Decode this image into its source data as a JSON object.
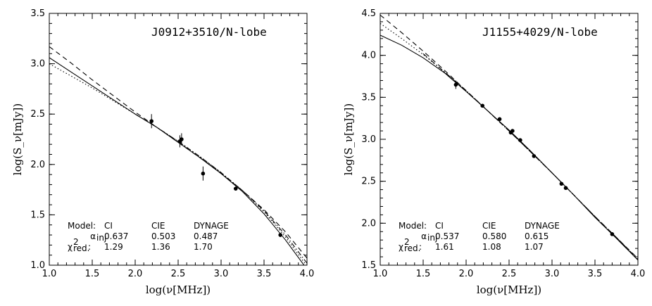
{
  "chart_data": [
    {
      "type": "line",
      "title": "J0912+3510/N-lobe",
      "xlabel": "log(ν[MHz])",
      "ylabel": "log(S_ν[mJy])",
      "xlim": [
        1.0,
        4.0
      ],
      "ylim": [
        1.0,
        3.5
      ],
      "xticks": [
        "1.0",
        "1.5",
        "2.0",
        "2.5",
        "3.0",
        "3.5",
        "4.0"
      ],
      "yticks": [
        "1.0",
        "1.5",
        "2.0",
        "2.5",
        "3.0",
        "3.5"
      ],
      "points": [
        {
          "x": 2.19,
          "y": 2.43,
          "err": 0.07
        },
        {
          "x": 2.52,
          "y": 2.23,
          "err": 0.06
        },
        {
          "x": 2.54,
          "y": 2.25,
          "err": 0.06
        },
        {
          "x": 2.79,
          "y": 1.91,
          "err": 0.07
        },
        {
          "x": 3.17,
          "y": 1.76,
          "err": 0.02
        },
        {
          "x": 3.69,
          "y": 1.3,
          "err": 0.02
        }
      ],
      "series": [
        {
          "name": "CI",
          "style": "solid",
          "x": [
            1.0,
            1.25,
            1.5,
            1.75,
            2.0,
            2.25,
            2.5,
            2.75,
            3.0,
            3.25,
            3.5,
            3.75,
            4.0
          ],
          "y": [
            3.06,
            2.92,
            2.78,
            2.64,
            2.5,
            2.37,
            2.22,
            2.07,
            1.91,
            1.73,
            1.51,
            1.25,
            0.96
          ]
        },
        {
          "name": "CIE",
          "style": "dashed",
          "x": [
            1.0,
            1.25,
            1.5,
            1.75,
            2.0,
            2.25,
            2.5,
            2.75,
            3.0,
            3.25,
            3.5,
            3.75,
            4.0
          ],
          "y": [
            3.17,
            3.01,
            2.84,
            2.68,
            2.52,
            2.37,
            2.22,
            2.07,
            1.91,
            1.74,
            1.55,
            1.33,
            1.07
          ]
        },
        {
          "name": "DYNAGE",
          "style": "dotted",
          "x": [
            1.0,
            1.25,
            1.5,
            1.75,
            2.0,
            2.25,
            2.5,
            2.75,
            3.0,
            3.25,
            3.5,
            3.75,
            4.0
          ],
          "y": [
            3.0,
            2.88,
            2.76,
            2.63,
            2.5,
            2.37,
            2.23,
            2.08,
            1.92,
            1.74,
            1.53,
            1.28,
            0.99
          ]
        },
        {
          "name": "DYNAGE",
          "style": "dashdot",
          "x": [
            2.0,
            2.25,
            2.5,
            2.75,
            3.0,
            3.25,
            3.5,
            3.75,
            4.0
          ],
          "y": [
            2.5,
            2.37,
            2.23,
            2.08,
            1.92,
            1.74,
            1.54,
            1.3,
            1.02
          ]
        }
      ],
      "table": {
        "header": [
          "Model:",
          "CI",
          "CIE",
          "DYNAGE"
        ],
        "alpha_label": "α",
        "alpha_sub": "inj",
        "alpha": [
          "0.637",
          "0.503",
          "0.487"
        ],
        "chi_label": "χ",
        "chi_sup": "2",
        "chi_sub": "red.",
        "chi_suffix": ":",
        "chi2": [
          "1.29",
          "1.36",
          "1.70"
        ]
      }
    },
    {
      "type": "line",
      "title": "J1155+4029/N-lobe",
      "xlabel": "log(ν[MHz])",
      "ylabel": "log(S_ν[mJy])",
      "xlim": [
        1.0,
        4.0
      ],
      "ylim": [
        1.5,
        4.5
      ],
      "xticks": [
        "1.0",
        "1.5",
        "2.0",
        "2.5",
        "3.0",
        "3.5",
        "4.0"
      ],
      "yticks": [
        "1.5",
        "2.0",
        "2.5",
        "3.0",
        "3.5",
        "4.0",
        "4.5"
      ],
      "points": [
        {
          "x": 1.88,
          "y": 3.65,
          "err": 0.05
        },
        {
          "x": 2.19,
          "y": 3.4,
          "err": 0.01
        },
        {
          "x": 2.39,
          "y": 3.24,
          "err": 0.01
        },
        {
          "x": 2.52,
          "y": 3.08,
          "err": 0.01
        },
        {
          "x": 2.54,
          "y": 3.1,
          "err": 0.01
        },
        {
          "x": 2.63,
          "y": 2.99,
          "err": 0.01
        },
        {
          "x": 2.79,
          "y": 2.8,
          "err": 0.01
        },
        {
          "x": 3.11,
          "y": 2.47,
          "err": 0.01
        },
        {
          "x": 3.16,
          "y": 2.42,
          "err": 0.01
        },
        {
          "x": 3.7,
          "y": 1.87,
          "err": 0.01
        }
      ],
      "series": [
        {
          "name": "CI",
          "style": "solid",
          "x": [
            1.0,
            1.25,
            1.5,
            1.75,
            2.0,
            2.25,
            2.5,
            2.75,
            3.0,
            3.25,
            3.5,
            3.75,
            4.0
          ],
          "y": [
            4.24,
            4.12,
            3.97,
            3.79,
            3.57,
            3.34,
            3.11,
            2.86,
            2.6,
            2.34,
            2.07,
            1.82,
            1.56
          ]
        },
        {
          "name": "CIE",
          "style": "dashed",
          "x": [
            1.0,
            1.25,
            1.5,
            1.75,
            2.0,
            2.25,
            2.5,
            2.75,
            3.0,
            3.25,
            3.5,
            3.75,
            4.0
          ],
          "y": [
            4.48,
            4.27,
            4.05,
            3.82,
            3.58,
            3.34,
            3.1,
            2.85,
            2.6,
            2.34,
            2.08,
            1.83,
            1.58
          ]
        },
        {
          "name": "DYNAGE",
          "style": "dotted",
          "x": [
            1.0,
            1.25,
            1.5,
            1.75,
            2.0,
            2.25,
            2.5,
            2.75,
            3.0,
            3.25,
            3.5,
            3.75,
            4.0
          ],
          "y": [
            4.38,
            4.2,
            4.01,
            3.8,
            3.58,
            3.34,
            3.1,
            2.85,
            2.6,
            2.34,
            2.08,
            1.83,
            1.57
          ]
        },
        {
          "name": "DYNAGE",
          "style": "dashdot",
          "x": [
            1.5,
            1.75,
            2.0,
            2.25,
            2.5,
            2.75,
            3.0,
            3.25,
            3.5,
            3.75,
            4.0
          ],
          "y": [
            4.02,
            3.8,
            3.58,
            3.34,
            3.1,
            2.85,
            2.6,
            2.34,
            2.08,
            1.83,
            1.57
          ]
        }
      ],
      "table": {
        "header": [
          "Model:",
          "CI",
          "CIE",
          "DYNAGE"
        ],
        "alpha_label": "α",
        "alpha_sub": "inj",
        "alpha": [
          "0.537",
          "0.580",
          "0.615"
        ],
        "chi_label": "χ",
        "chi_sup": "2",
        "chi_sub": "red.",
        "chi_suffix": ":",
        "chi2": [
          "1.61",
          "1.08",
          "1.07"
        ]
      }
    }
  ]
}
